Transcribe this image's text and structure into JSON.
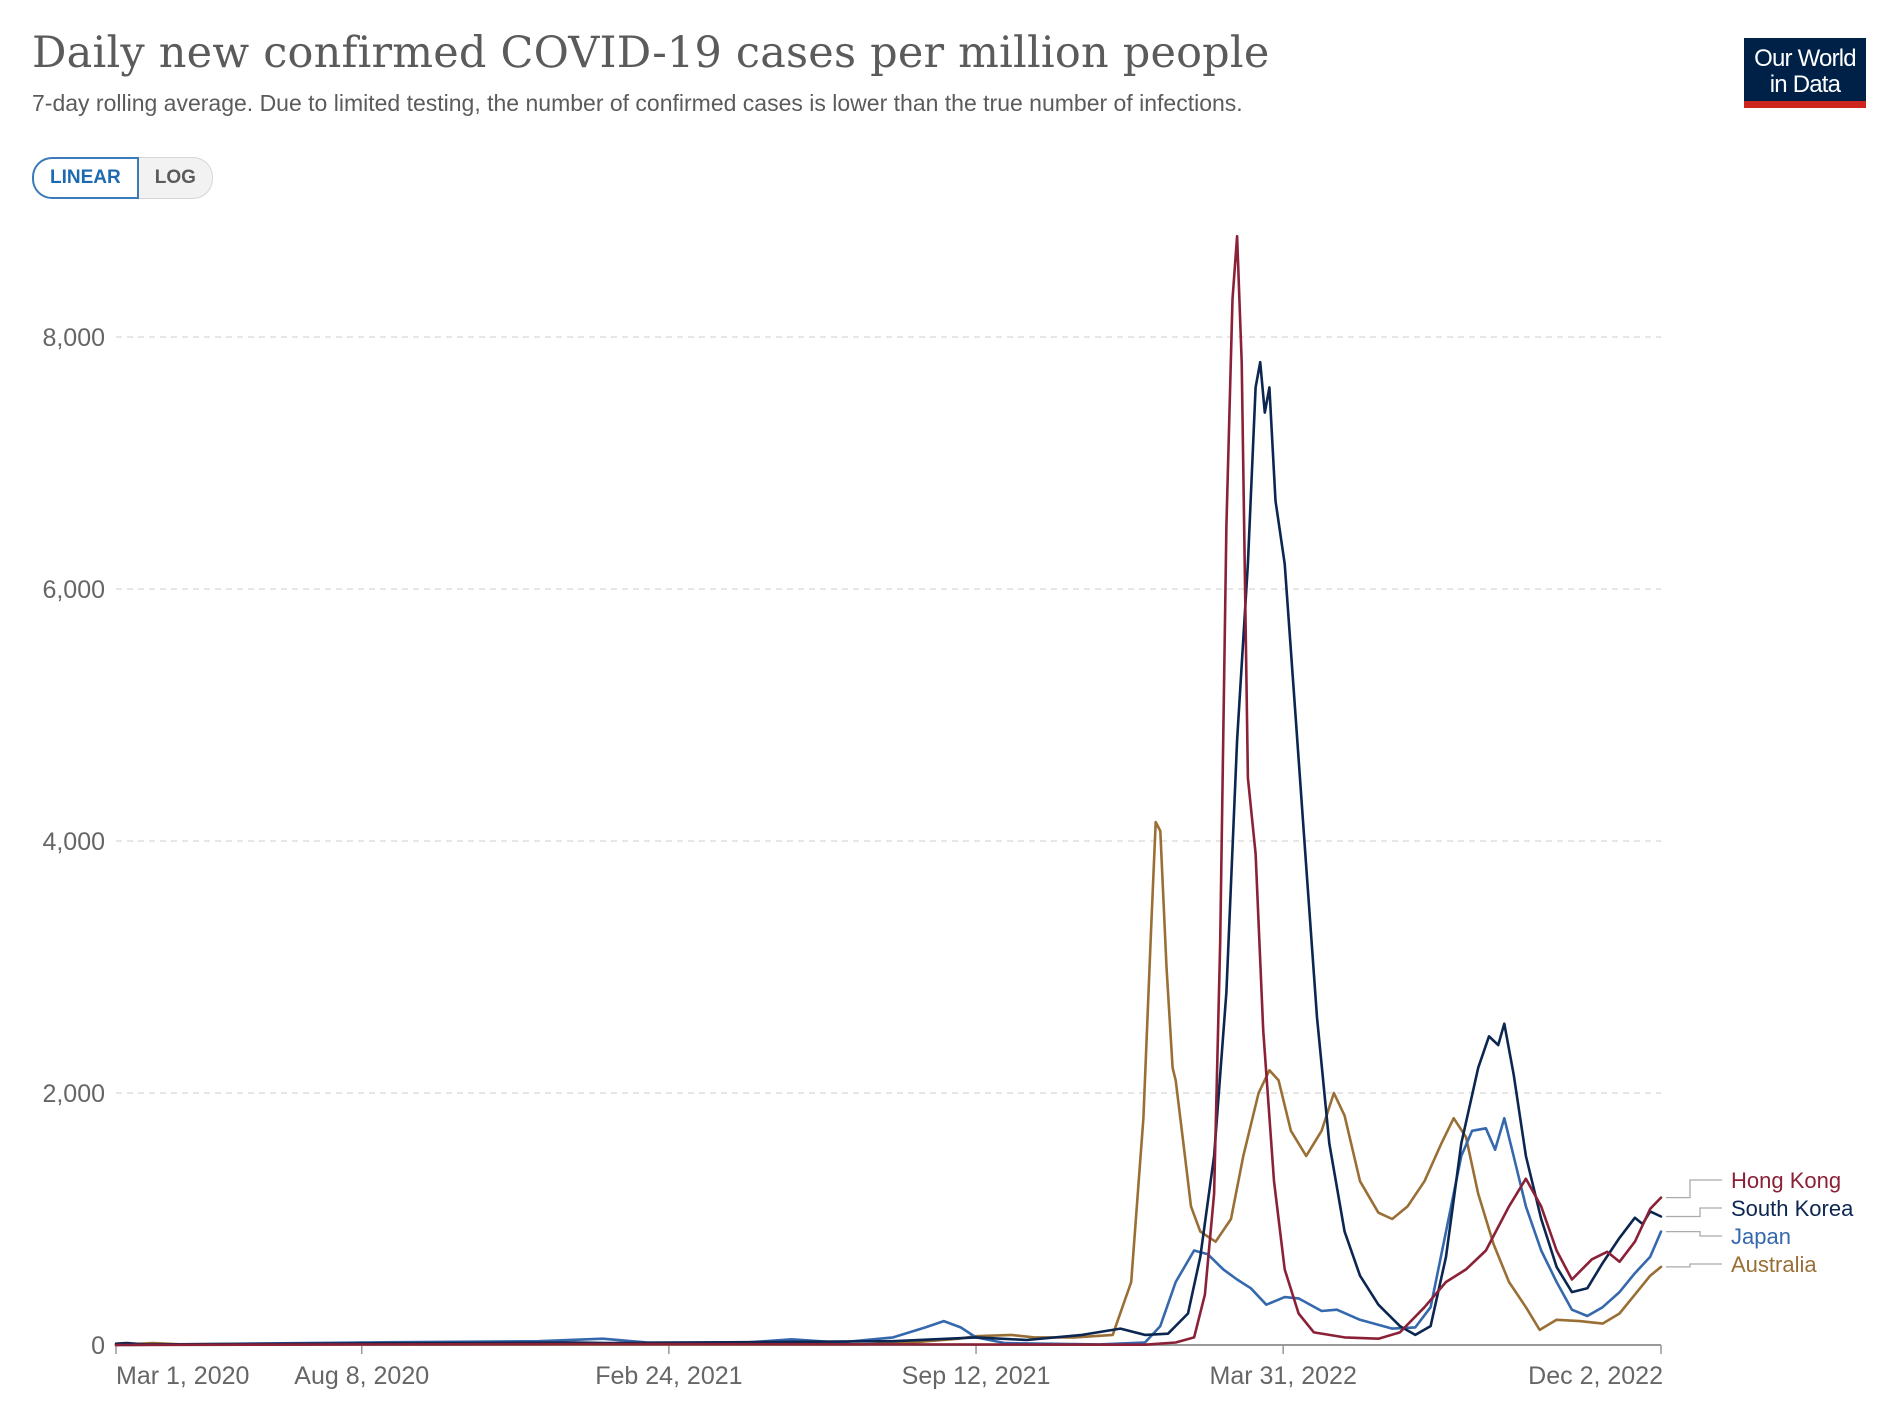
{
  "header": {
    "title": "Daily new confirmed COVID-19 cases per million people",
    "subtitle": "7-day rolling average. Due to limited testing, the number of confirmed cases is lower than the true number of infections.",
    "logo_line1": "Our World",
    "logo_line2": "in Data"
  },
  "scale_toggle": {
    "linear_label": "LINEAR",
    "log_label": "LOG",
    "selected": "LINEAR"
  },
  "colors": {
    "hong_kong": "#8b2136",
    "south_korea": "#0b2650",
    "japan": "#3568ad",
    "australia": "#9a6f35",
    "grid": "#dddddd",
    "axis": "#999999"
  },
  "chart_data": {
    "type": "line",
    "title": "Daily new confirmed COVID-19 cases per million people",
    "xlabel": "",
    "ylabel": "",
    "ylim": [
      0,
      8800
    ],
    "yticks": [
      0,
      2000,
      4000,
      6000,
      8000
    ],
    "ytick_labels": [
      "0",
      "2,000",
      "4,000",
      "6,000",
      "8,000"
    ],
    "xlim": [
      "2020-03-01",
      "2022-12-02"
    ],
    "xticks": [
      "2020-03-01",
      "2020-08-08",
      "2021-02-24",
      "2021-09-12",
      "2022-03-31",
      "2022-12-02"
    ],
    "xtick_labels": [
      "Mar 1, 2020",
      "Aug 8, 2020",
      "Feb 24, 2021",
      "Sep 12, 2021",
      "Mar 31, 2022",
      "Dec 2, 2022"
    ],
    "grid": true,
    "legend": "right-end labels",
    "series": [
      {
        "name": "Hong Kong",
        "color_key": "hong_kong",
        "points": [
          [
            "2020-03-01",
            0
          ],
          [
            "2021-01-01",
            8
          ],
          [
            "2021-12-31",
            2
          ],
          [
            "2022-01-20",
            20
          ],
          [
            "2022-02-01",
            60
          ],
          [
            "2022-02-08",
            400
          ],
          [
            "2022-02-14",
            1200
          ],
          [
            "2022-02-18",
            3200
          ],
          [
            "2022-02-22",
            6500
          ],
          [
            "2022-02-26",
            8300
          ],
          [
            "2022-03-01",
            8800
          ],
          [
            "2022-03-04",
            7800
          ],
          [
            "2022-03-08",
            4500
          ],
          [
            "2022-03-13",
            3900
          ],
          [
            "2022-03-18",
            2500
          ],
          [
            "2022-03-25",
            1300
          ],
          [
            "2022-04-01",
            600
          ],
          [
            "2022-04-10",
            250
          ],
          [
            "2022-04-20",
            100
          ],
          [
            "2022-05-10",
            60
          ],
          [
            "2022-06-01",
            50
          ],
          [
            "2022-06-15",
            100
          ],
          [
            "2022-07-01",
            300
          ],
          [
            "2022-07-15",
            500
          ],
          [
            "2022-07-28",
            600
          ],
          [
            "2022-08-10",
            750
          ],
          [
            "2022-08-25",
            1100
          ],
          [
            "2022-09-05",
            1320
          ],
          [
            "2022-09-15",
            1100
          ],
          [
            "2022-09-25",
            750
          ],
          [
            "2022-10-05",
            520
          ],
          [
            "2022-10-18",
            680
          ],
          [
            "2022-10-28",
            740
          ],
          [
            "2022-11-05",
            660
          ],
          [
            "2022-11-15",
            820
          ],
          [
            "2022-11-25",
            1080
          ],
          [
            "2022-12-02",
            1170
          ]
        ]
      },
      {
        "name": "South Korea",
        "color_key": "south_korea",
        "points": [
          [
            "2020-03-01",
            10
          ],
          [
            "2020-03-08",
            15
          ],
          [
            "2020-03-20",
            5
          ],
          [
            "2020-12-25",
            20
          ],
          [
            "2021-01-15",
            15
          ],
          [
            "2021-07-20",
            30
          ],
          [
            "2021-09-12",
            60
          ],
          [
            "2021-10-15",
            40
          ],
          [
            "2021-11-20",
            80
          ],
          [
            "2021-12-15",
            130
          ],
          [
            "2021-12-31",
            80
          ],
          [
            "2022-01-15",
            90
          ],
          [
            "2022-01-28",
            250
          ],
          [
            "2022-02-05",
            700
          ],
          [
            "2022-02-14",
            1500
          ],
          [
            "2022-02-22",
            2800
          ],
          [
            "2022-03-01",
            4800
          ],
          [
            "2022-03-08",
            6200
          ],
          [
            "2022-03-13",
            7600
          ],
          [
            "2022-03-16",
            7800
          ],
          [
            "2022-03-19",
            7400
          ],
          [
            "2022-03-22",
            7600
          ],
          [
            "2022-03-26",
            6700
          ],
          [
            "2022-04-01",
            6200
          ],
          [
            "2022-04-08",
            5000
          ],
          [
            "2022-04-15",
            3800
          ],
          [
            "2022-04-22",
            2600
          ],
          [
            "2022-04-30",
            1600
          ],
          [
            "2022-05-10",
            900
          ],
          [
            "2022-05-20",
            550
          ],
          [
            "2022-06-01",
            320
          ],
          [
            "2022-06-15",
            150
          ],
          [
            "2022-06-25",
            80
          ],
          [
            "2022-07-05",
            150
          ],
          [
            "2022-07-15",
            700
          ],
          [
            "2022-07-25",
            1600
          ],
          [
            "2022-08-05",
            2200
          ],
          [
            "2022-08-12",
            2450
          ],
          [
            "2022-08-18",
            2380
          ],
          [
            "2022-08-22",
            2550
          ],
          [
            "2022-08-28",
            2150
          ],
          [
            "2022-09-05",
            1500
          ],
          [
            "2022-09-15",
            1000
          ],
          [
            "2022-09-25",
            620
          ],
          [
            "2022-10-05",
            420
          ],
          [
            "2022-10-15",
            450
          ],
          [
            "2022-10-25",
            650
          ],
          [
            "2022-11-05",
            850
          ],
          [
            "2022-11-15",
            1010
          ],
          [
            "2022-11-20",
            960
          ],
          [
            "2022-11-25",
            1060
          ],
          [
            "2022-12-02",
            1020
          ]
        ]
      },
      {
        "name": "Japan",
        "color_key": "japan",
        "points": [
          [
            "2020-03-01",
            0
          ],
          [
            "2020-08-08",
            20
          ],
          [
            "2020-12-01",
            30
          ],
          [
            "2021-01-12",
            50
          ],
          [
            "2021-02-10",
            20
          ],
          [
            "2021-04-15",
            20
          ],
          [
            "2021-05-15",
            45
          ],
          [
            "2021-06-15",
            20
          ],
          [
            "2021-07-20",
            60
          ],
          [
            "2021-08-10",
            140
          ],
          [
            "2021-08-22",
            190
          ],
          [
            "2021-09-02",
            140
          ],
          [
            "2021-09-12",
            60
          ],
          [
            "2021-10-01",
            15
          ],
          [
            "2021-12-01",
            5
          ],
          [
            "2021-12-31",
            20
          ],
          [
            "2022-01-10",
            150
          ],
          [
            "2022-01-20",
            500
          ],
          [
            "2022-02-01",
            750
          ],
          [
            "2022-02-10",
            720
          ],
          [
            "2022-02-20",
            600
          ],
          [
            "2022-03-01",
            520
          ],
          [
            "2022-03-10",
            450
          ],
          [
            "2022-03-20",
            320
          ],
          [
            "2022-04-01",
            380
          ],
          [
            "2022-04-10",
            370
          ],
          [
            "2022-04-25",
            270
          ],
          [
            "2022-05-05",
            280
          ],
          [
            "2022-05-20",
            200
          ],
          [
            "2022-06-10",
            130
          ],
          [
            "2022-06-25",
            140
          ],
          [
            "2022-07-05",
            300
          ],
          [
            "2022-07-15",
            900
          ],
          [
            "2022-07-25",
            1500
          ],
          [
            "2022-08-01",
            1700
          ],
          [
            "2022-08-10",
            1720
          ],
          [
            "2022-08-16",
            1550
          ],
          [
            "2022-08-22",
            1800
          ],
          [
            "2022-08-28",
            1500
          ],
          [
            "2022-09-05",
            1100
          ],
          [
            "2022-09-15",
            750
          ],
          [
            "2022-09-25",
            500
          ],
          [
            "2022-10-05",
            280
          ],
          [
            "2022-10-15",
            230
          ],
          [
            "2022-10-25",
            300
          ],
          [
            "2022-11-05",
            420
          ],
          [
            "2022-11-15",
            570
          ],
          [
            "2022-11-25",
            700
          ],
          [
            "2022-12-02",
            900
          ]
        ]
      },
      {
        "name": "Australia",
        "color_key": "australia",
        "points": [
          [
            "2020-03-01",
            0
          ],
          [
            "2020-03-25",
            15
          ],
          [
            "2020-04-15",
            3
          ],
          [
            "2020-07-20",
            10
          ],
          [
            "2020-08-08",
            20
          ],
          [
            "2020-09-01",
            5
          ],
          [
            "2021-07-01",
            5
          ],
          [
            "2021-08-01",
            20
          ],
          [
            "2021-09-01",
            50
          ],
          [
            "2021-09-12",
            70
          ],
          [
            "2021-10-05",
            80
          ],
          [
            "2021-10-20",
            60
          ],
          [
            "2021-11-15",
            60
          ],
          [
            "2021-12-10",
            80
          ],
          [
            "2021-12-22",
            500
          ],
          [
            "2021-12-30",
            1800
          ],
          [
            "2022-01-04",
            3300
          ],
          [
            "2022-01-07",
            4150
          ],
          [
            "2022-01-10",
            4080
          ],
          [
            "2022-01-14",
            3000
          ],
          [
            "2022-01-18",
            2200
          ],
          [
            "2022-01-20",
            2100
          ],
          [
            "2022-01-25",
            1600
          ],
          [
            "2022-01-30",
            1100
          ],
          [
            "2022-02-05",
            900
          ],
          [
            "2022-02-15",
            820
          ],
          [
            "2022-02-25",
            1000
          ],
          [
            "2022-03-05",
            1500
          ],
          [
            "2022-03-15",
            2000
          ],
          [
            "2022-03-22",
            2180
          ],
          [
            "2022-03-28",
            2100
          ],
          [
            "2022-04-05",
            1700
          ],
          [
            "2022-04-15",
            1500
          ],
          [
            "2022-04-25",
            1700
          ],
          [
            "2022-05-03",
            2000
          ],
          [
            "2022-05-10",
            1820
          ],
          [
            "2022-05-20",
            1300
          ],
          [
            "2022-06-01",
            1050
          ],
          [
            "2022-06-10",
            1000
          ],
          [
            "2022-06-20",
            1100
          ],
          [
            "2022-07-01",
            1300
          ],
          [
            "2022-07-12",
            1600
          ],
          [
            "2022-07-20",
            1800
          ],
          [
            "2022-07-28",
            1650
          ],
          [
            "2022-08-05",
            1200
          ],
          [
            "2022-08-15",
            800
          ],
          [
            "2022-08-25",
            500
          ],
          [
            "2022-09-05",
            300
          ],
          [
            "2022-09-14",
            120
          ],
          [
            "2022-09-25",
            200
          ],
          [
            "2022-10-10",
            190
          ],
          [
            "2022-10-25",
            170
          ],
          [
            "2022-11-05",
            250
          ],
          [
            "2022-11-15",
            400
          ],
          [
            "2022-11-25",
            550
          ],
          [
            "2022-12-02",
            620
          ]
        ]
      }
    ]
  }
}
